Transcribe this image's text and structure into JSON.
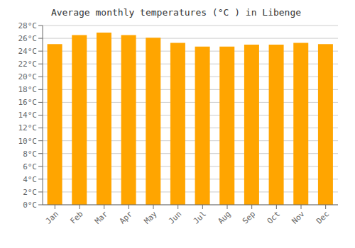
{
  "chart_data": {
    "type": "bar",
    "title": "Average monthly temperatures (°C ) in Libenge",
    "categories": [
      "Jan",
      "Feb",
      "Mar",
      "Apr",
      "May",
      "Jun",
      "Jul",
      "Aug",
      "Sep",
      "Oct",
      "Nov",
      "Dec"
    ],
    "values": [
      25.1,
      26.5,
      26.9,
      26.5,
      26.1,
      25.3,
      24.7,
      24.7,
      25.0,
      25.0,
      25.3,
      25.1
    ],
    "color": "#ffa500",
    "ylim": [
      0,
      28
    ],
    "yticks": [
      {
        "value": 0,
        "label": "0°C"
      },
      {
        "value": 2,
        "label": "2°C"
      },
      {
        "value": 4,
        "label": "4°C"
      },
      {
        "value": 6,
        "label": "6°C"
      },
      {
        "value": 8,
        "label": "8°C"
      },
      {
        "value": 10,
        "label": "10°C"
      },
      {
        "value": 12,
        "label": "12°C"
      },
      {
        "value": 14,
        "label": "14°C"
      },
      {
        "value": 16,
        "label": "16°C"
      },
      {
        "value": 18,
        "label": "18°C"
      },
      {
        "value": 20,
        "label": "20°C"
      },
      {
        "value": 22,
        "label": "22°C"
      },
      {
        "value": 24,
        "label": "24°C"
      },
      {
        "value": 26,
        "label": "26°C"
      },
      {
        "value": 28,
        "label": "28°C"
      }
    ],
    "grid": true
  }
}
